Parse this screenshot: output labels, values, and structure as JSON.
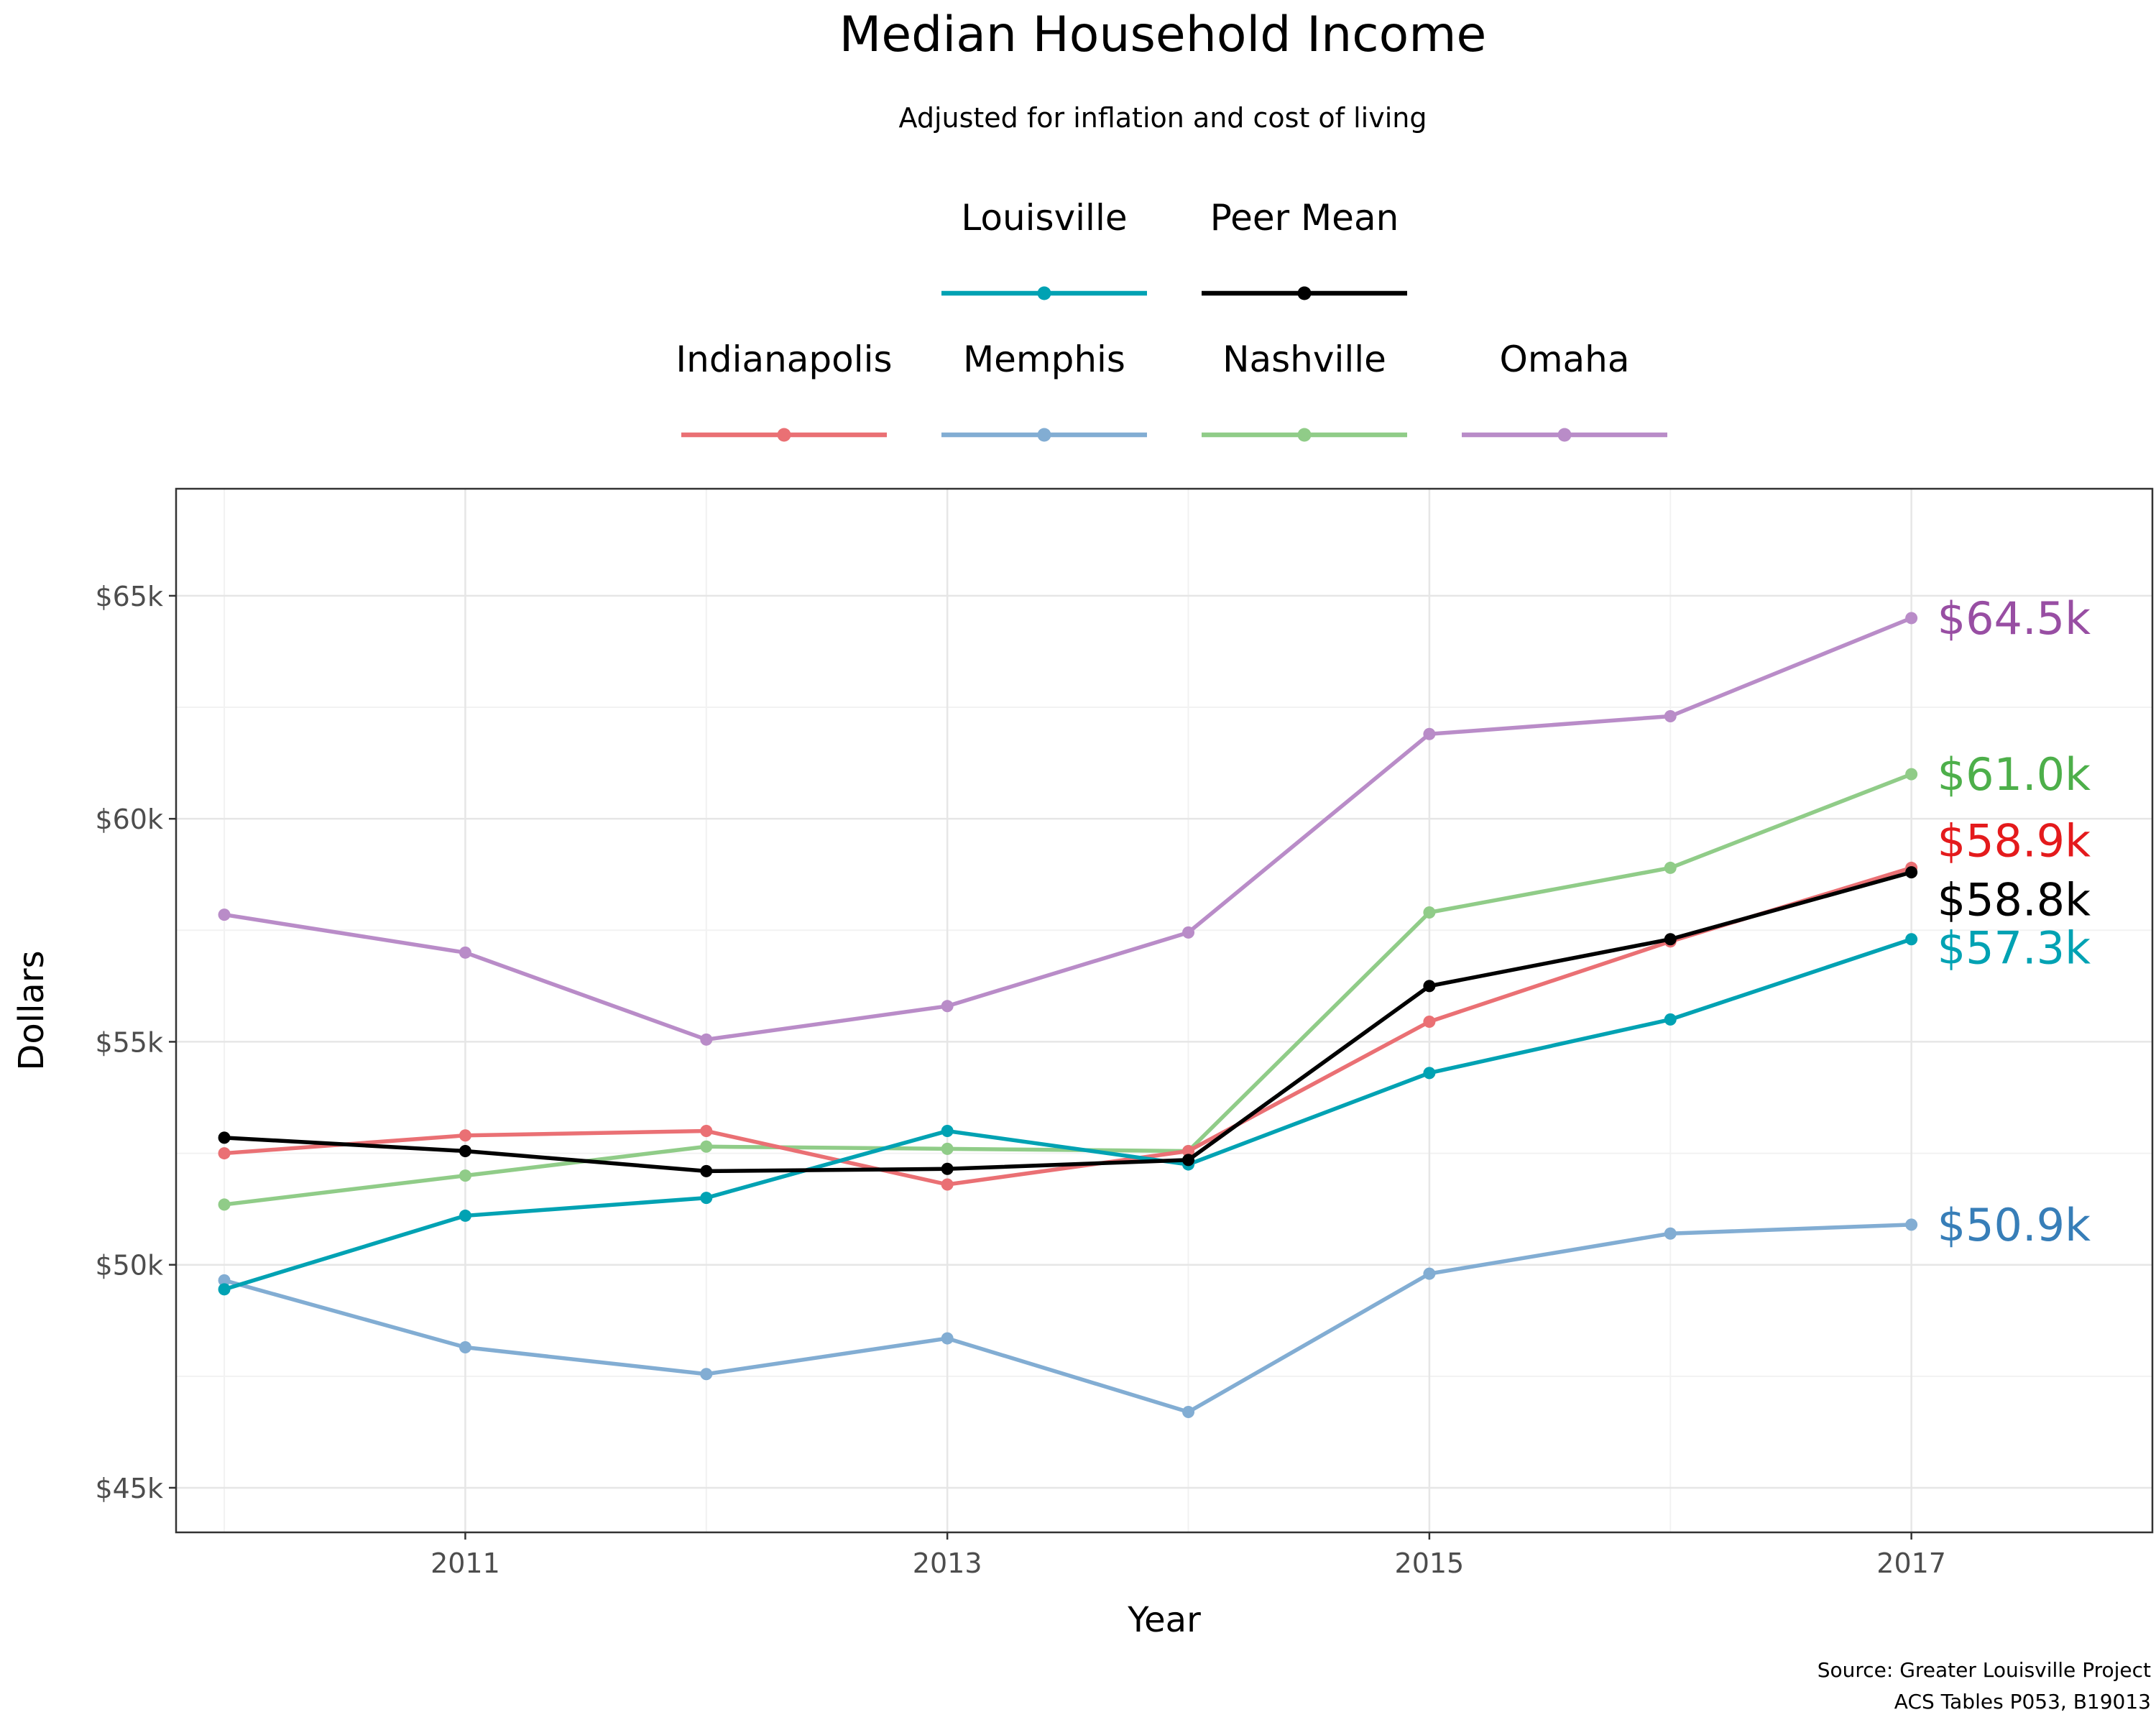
{
  "chart_data": {
    "type": "line",
    "title": "Median Household Income",
    "subtitle": "Adjusted for inflation and cost of living",
    "xlabel": "Year",
    "ylabel": "Dollars",
    "x": [
      2010,
      2011,
      2012,
      2013,
      2014,
      2015,
      2016,
      2017
    ],
    "x_ticks": [
      2011,
      2013,
      2015,
      2017
    ],
    "x_tick_labels": [
      "2011",
      "2013",
      "2015",
      "2017"
    ],
    "xlim": [
      2009.8,
      2018
    ],
    "ylim": [
      44000,
      67400
    ],
    "y_ticks": [
      45000,
      50000,
      55000,
      60000,
      65000
    ],
    "y_tick_labels": [
      "$45k",
      "$50k",
      "$55k",
      "$60k",
      "$65k"
    ],
    "y_minor_ticks": [
      47500,
      52500,
      57500,
      62500
    ],
    "grid": true,
    "legend_position": "top",
    "legend_rows": [
      [
        "Louisville",
        "Peer Mean"
      ],
      [
        "Indianapolis",
        "Memphis",
        "Nashville",
        "Omaha"
      ]
    ],
    "series": [
      {
        "name": "Omaha",
        "color": "#b98cc8",
        "label_color": "#984ea3",
        "end_label": "$64.5k",
        "values": [
          57850,
          57000,
          55050,
          55800,
          57450,
          61900,
          62300,
          64500
        ]
      },
      {
        "name": "Nashville",
        "color": "#90cc88",
        "label_color": "#4daf4a",
        "end_label": "$61.0k",
        "values": [
          51350,
          52000,
          52650,
          52600,
          52550,
          57900,
          58900,
          61000
        ]
      },
      {
        "name": "Indianapolis",
        "color": "#ea7074",
        "label_color": "#e41a1c",
        "end_label": "$58.9k",
        "values": [
          52500,
          52900,
          53000,
          51800,
          52550,
          55450,
          57250,
          58900
        ]
      },
      {
        "name": "Memphis",
        "color": "#82add3",
        "label_color": "#377eb8",
        "end_label": "$50.9k",
        "values": [
          49650,
          48150,
          47550,
          48350,
          46700,
          49800,
          50700,
          50900
        ]
      },
      {
        "name": "Louisville",
        "color": "#00a2b3",
        "label_color": "#00a2b3",
        "end_label": "$57.3k",
        "values": [
          49450,
          51100,
          51500,
          53000,
          52250,
          54300,
          55500,
          57300
        ]
      },
      {
        "name": "Peer Mean",
        "color": "#000000",
        "label_color": "#000000",
        "end_label": "$58.8k",
        "values": [
          52850,
          52550,
          52100,
          52150,
          52350,
          56250,
          57300,
          58800
        ]
      }
    ]
  },
  "source": {
    "line1": "Source: Greater Louisville Project",
    "line2": "ACS Tables P053, B19013"
  }
}
